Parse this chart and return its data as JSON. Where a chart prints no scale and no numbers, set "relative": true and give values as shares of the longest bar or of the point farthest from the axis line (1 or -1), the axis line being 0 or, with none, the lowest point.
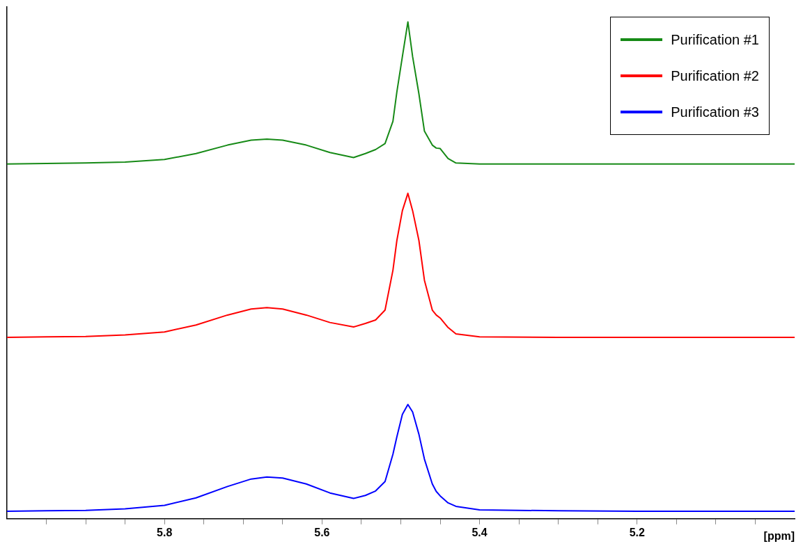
{
  "chart_data": {
    "type": "line",
    "relative": true,
    "xlabel": "[ppm]",
    "xlim": [
      6.0,
      5.0
    ],
    "xticks": [
      {
        "value": 5.95,
        "label": null
      },
      {
        "value": 5.9,
        "label": null
      },
      {
        "value": 5.85,
        "label": null
      },
      {
        "value": 5.8,
        "label": "5.8"
      },
      {
        "value": 5.75,
        "label": null
      },
      {
        "value": 5.7,
        "label": null
      },
      {
        "value": 5.65,
        "label": null
      },
      {
        "value": 5.6,
        "label": "5.6"
      },
      {
        "value": 5.55,
        "label": null
      },
      {
        "value": 5.5,
        "label": null
      },
      {
        "value": 5.45,
        "label": null
      },
      {
        "value": 5.4,
        "label": "5.4"
      },
      {
        "value": 5.35,
        "label": null
      },
      {
        "value": 5.3,
        "label": null
      },
      {
        "value": 5.25,
        "label": null
      },
      {
        "value": 5.2,
        "label": "5.2"
      },
      {
        "value": 5.15,
        "label": null
      },
      {
        "value": 5.1,
        "label": null
      },
      {
        "value": 5.05,
        "label": null
      }
    ],
    "x": [
      6.0,
      5.95,
      5.9,
      5.85,
      5.8,
      5.76,
      5.72,
      5.69,
      5.67,
      5.65,
      5.62,
      5.59,
      5.56,
      5.545,
      5.532,
      5.52,
      5.51,
      5.505,
      5.498,
      5.491,
      5.485,
      5.477,
      5.47,
      5.46,
      5.455,
      5.45,
      5.44,
      5.43,
      5.4,
      5.3,
      5.2,
      5.1,
      5.0
    ],
    "series": [
      {
        "name": "Purification #1",
        "color": "#168a16",
        "values": [
          0.714,
          0.715,
          0.716,
          0.718,
          0.723,
          0.735,
          0.752,
          0.762,
          0.764,
          0.762,
          0.752,
          0.737,
          0.727,
          0.735,
          0.743,
          0.755,
          0.8,
          0.859,
          0.93,
          1.0,
          0.93,
          0.855,
          0.78,
          0.752,
          0.746,
          0.745,
          0.725,
          0.716,
          0.714,
          0.714,
          0.714,
          0.714,
          0.714
        ]
      },
      {
        "name": "Purification #2",
        "color": "#ff0000",
        "values": [
          0.365,
          0.366,
          0.367,
          0.37,
          0.376,
          0.39,
          0.41,
          0.422,
          0.425,
          0.422,
          0.41,
          0.395,
          0.386,
          0.393,
          0.4,
          0.42,
          0.5,
          0.56,
          0.62,
          0.655,
          0.62,
          0.56,
          0.48,
          0.42,
          0.41,
          0.404,
          0.385,
          0.372,
          0.366,
          0.365,
          0.365,
          0.365,
          0.365
        ]
      },
      {
        "name": "Purification #3",
        "color": "#0000ff",
        "values": [
          0.015,
          0.016,
          0.017,
          0.02,
          0.027,
          0.042,
          0.065,
          0.08,
          0.084,
          0.082,
          0.07,
          0.052,
          0.041,
          0.047,
          0.056,
          0.075,
          0.13,
          0.165,
          0.21,
          0.23,
          0.215,
          0.17,
          0.12,
          0.07,
          0.055,
          0.046,
          0.032,
          0.025,
          0.018,
          0.016,
          0.015,
          0.015,
          0.015
        ]
      }
    ],
    "grid": false,
    "legend": "top right",
    "line_style": "solid",
    "marker": "none"
  }
}
